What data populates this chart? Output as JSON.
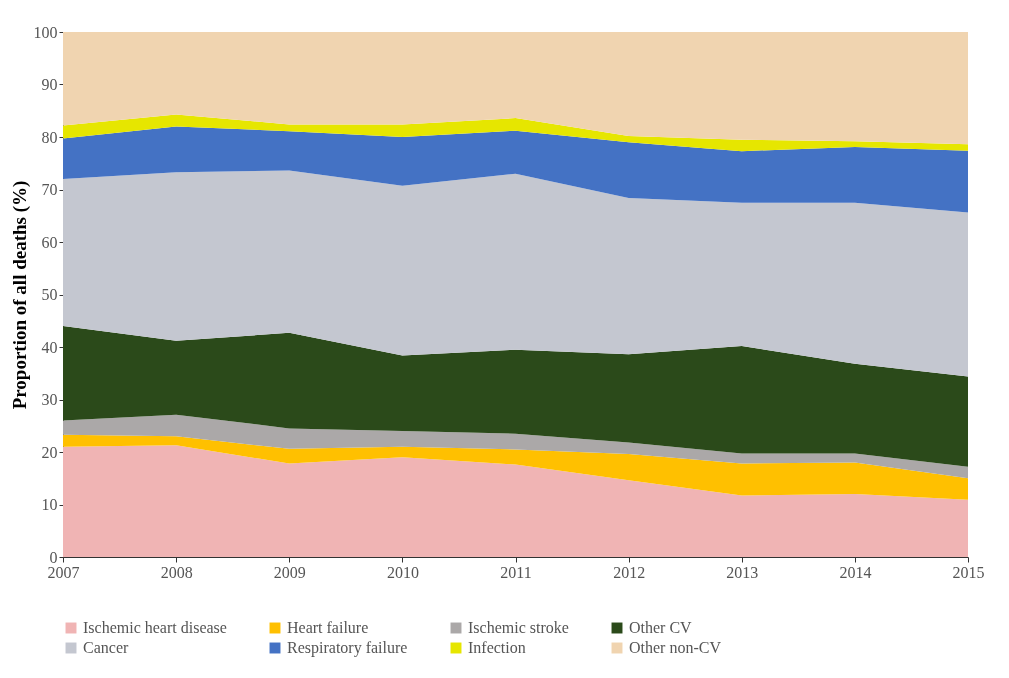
{
  "chart_data": {
    "type": "area",
    "stacked": true,
    "ylabel": "Proportion of all deaths (%)",
    "x": [
      2007,
      2008,
      2009,
      2010,
      2011,
      2012,
      2013,
      2014,
      2015
    ],
    "xlim": [
      2007,
      2015
    ],
    "xticks": [
      2007,
      2008,
      2009,
      2010,
      2011,
      2012,
      2013,
      2014,
      2015
    ],
    "ylim": [
      0,
      100
    ],
    "yticks": [
      0,
      10,
      20,
      30,
      40,
      50,
      60,
      70,
      80,
      90,
      100
    ],
    "grid": false,
    "legend": "bottom",
    "series": [
      {
        "name": "Ischemic heart disease",
        "color": "#f0b4b4",
        "values": [
          21,
          21.3,
          17.8,
          19,
          17.6,
          14.6,
          11.7,
          12,
          10.9
        ]
      },
      {
        "name": "Heart failure",
        "color": "#ffc000",
        "values": [
          2.3,
          1.7,
          2.8,
          2,
          2.9,
          5,
          6.1,
          6,
          4.1
        ]
      },
      {
        "name": "Ischemic stroke",
        "color": "#aba8a8",
        "values": [
          2.7,
          4.1,
          3.9,
          3,
          3,
          2.2,
          1.9,
          1.7,
          2.2
        ]
      },
      {
        "name": "Other CV",
        "color": "#2b4a1a",
        "values": [
          18,
          14.1,
          18.2,
          14.4,
          16,
          16.8,
          20.5,
          17.1,
          17.2
        ]
      },
      {
        "name": "Cancer",
        "color": "#c4c7d0",
        "values": [
          28,
          32.1,
          30.9,
          32.3,
          33.5,
          29.8,
          27.3,
          30.7,
          31.2
        ]
      },
      {
        "name": "Respiratory failure",
        "color": "#4472c4",
        "values": [
          7.7,
          8.7,
          7.5,
          9.3,
          8.2,
          10.6,
          9.8,
          10.6,
          11.8
        ]
      },
      {
        "name": "Infection",
        "color": "#e6e600",
        "values": [
          2.5,
          2.3,
          1.3,
          2.4,
          2.4,
          1.2,
          2.2,
          1.1,
          1.2
        ]
      },
      {
        "name": "Other non-CV",
        "color": "#f0d4b0",
        "values": [
          17.8,
          15.7,
          17.6,
          17.6,
          16.4,
          19.8,
          20.5,
          20.8,
          21.4
        ]
      }
    ]
  }
}
